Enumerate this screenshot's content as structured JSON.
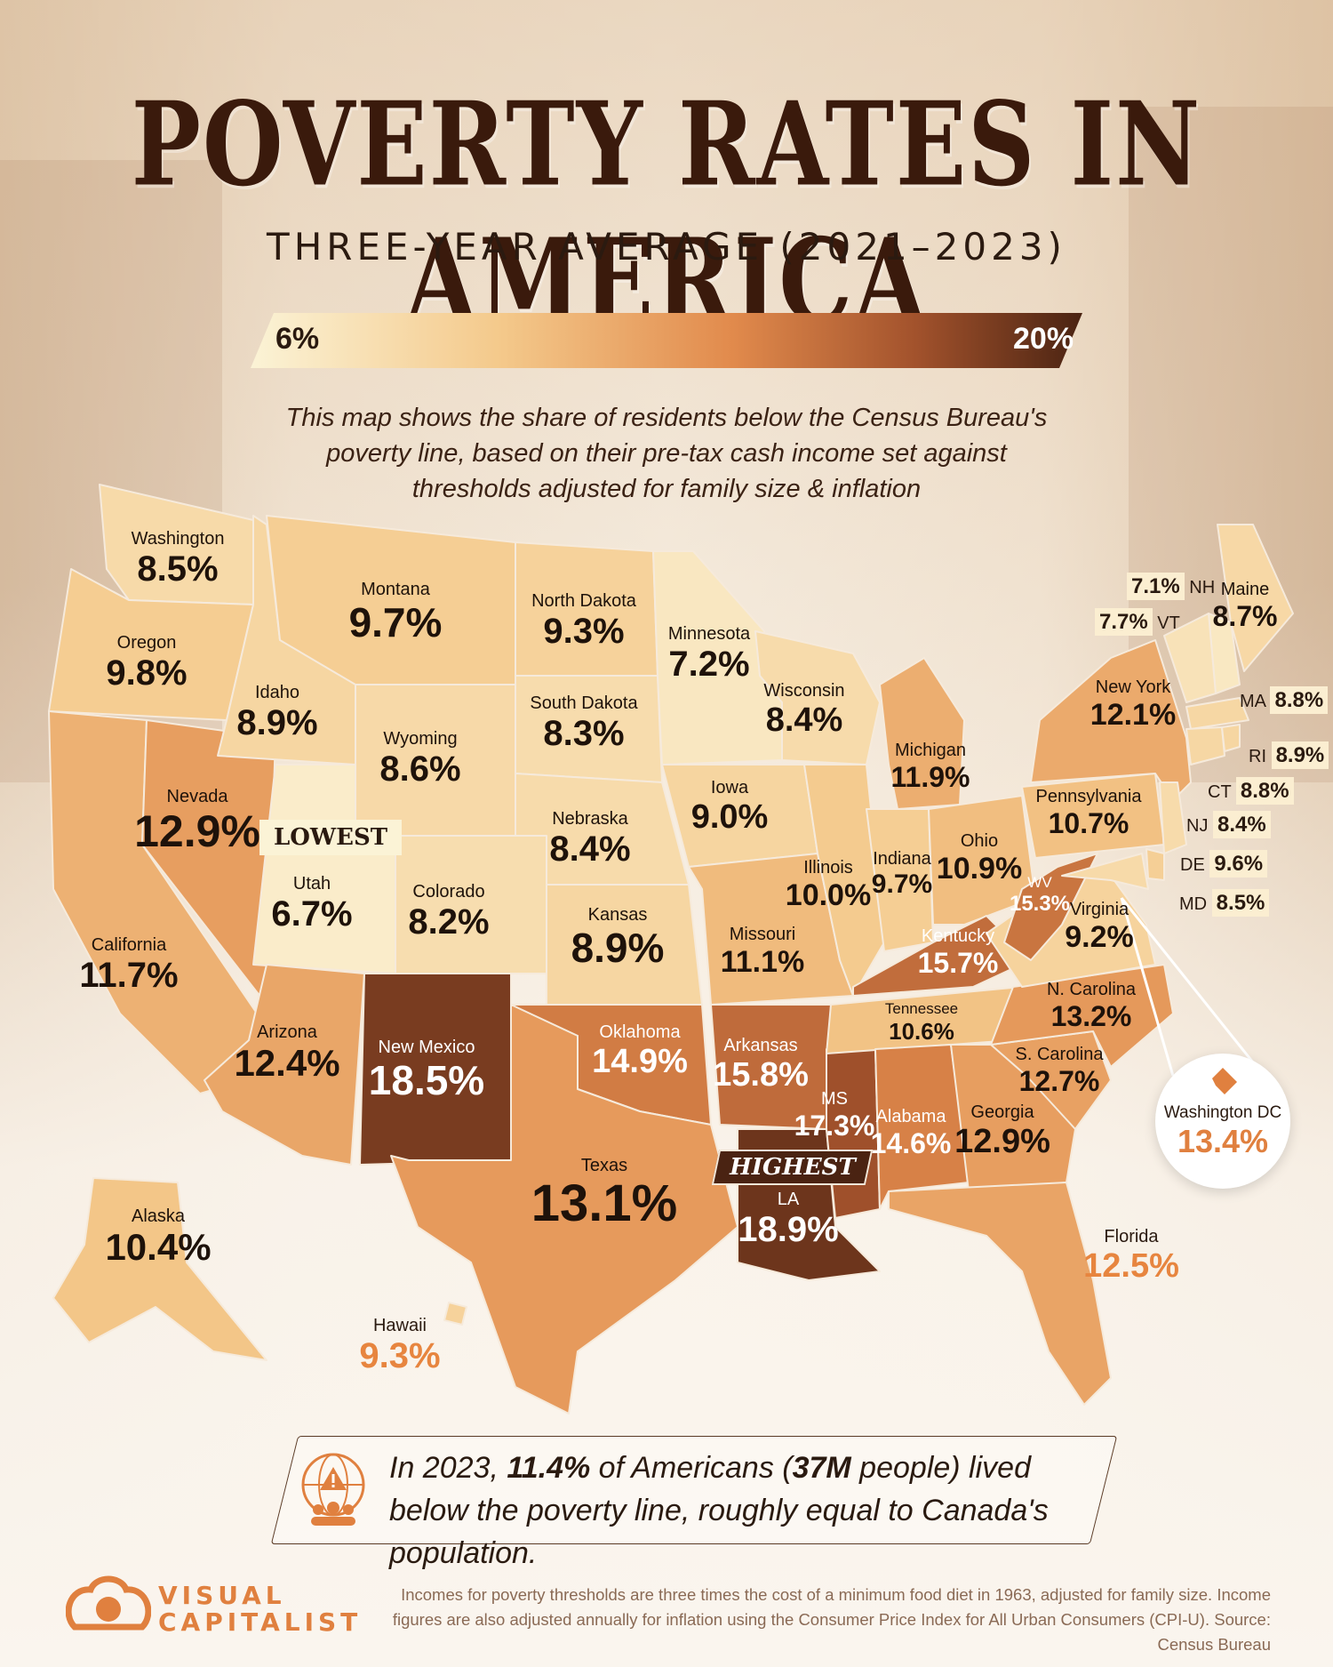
{
  "title": "POVERTY RATES IN AMERICA",
  "subtitle": "THREE-YEAR AVERAGE (2021–2023)",
  "legend": {
    "min_label": "6%",
    "max_label": "20%",
    "min": 6,
    "max": 20
  },
  "description": "This map shows the share of residents below the Census Bureau's poverty line, based on their pre-tax cash income set against thresholds adjusted for family size & inflation",
  "tags": {
    "lowest": "LOWEST",
    "highest": "HIGHEST"
  },
  "states": [
    {
      "name": "Washington",
      "value": "8.5%"
    },
    {
      "name": "Oregon",
      "value": "9.8%"
    },
    {
      "name": "California",
      "value": "11.7%"
    },
    {
      "name": "Nevada",
      "value": "12.9%"
    },
    {
      "name": "Idaho",
      "value": "8.9%"
    },
    {
      "name": "Montana",
      "value": "9.7%"
    },
    {
      "name": "Wyoming",
      "value": "8.6%"
    },
    {
      "name": "Utah",
      "value": "6.7%"
    },
    {
      "name": "Colorado",
      "value": "8.2%"
    },
    {
      "name": "Arizona",
      "value": "12.4%"
    },
    {
      "name": "New Mexico",
      "value": "18.5%"
    },
    {
      "name": "North Dakota",
      "value": "9.3%"
    },
    {
      "name": "South Dakota",
      "value": "8.3%"
    },
    {
      "name": "Nebraska",
      "value": "8.4%"
    },
    {
      "name": "Kansas",
      "value": "8.9%"
    },
    {
      "name": "Oklahoma",
      "value": "14.9%"
    },
    {
      "name": "Texas",
      "value": "13.1%"
    },
    {
      "name": "Minnesota",
      "value": "7.2%"
    },
    {
      "name": "Iowa",
      "value": "9.0%"
    },
    {
      "name": "Missouri",
      "value": "11.1%"
    },
    {
      "name": "Arkansas",
      "value": "15.8%"
    },
    {
      "name": "LA",
      "value": "18.9%"
    },
    {
      "name": "Wisconsin",
      "value": "8.4%"
    },
    {
      "name": "Illinois",
      "value": "10.0%"
    },
    {
      "name": "MS",
      "value": "17.3%"
    },
    {
      "name": "Michigan",
      "value": "11.9%"
    },
    {
      "name": "Indiana",
      "value": "9.7%"
    },
    {
      "name": "Ohio",
      "value": "10.9%"
    },
    {
      "name": "Kentucky",
      "value": "15.7%"
    },
    {
      "name": "Tennessee",
      "value": "10.6%"
    },
    {
      "name": "Alabama",
      "value": "14.6%"
    },
    {
      "name": "Georgia",
      "value": "12.9%"
    },
    {
      "name": "Florida",
      "value": "12.5%"
    },
    {
      "name": "S. Carolina",
      "value": "12.7%"
    },
    {
      "name": "N. Carolina",
      "value": "13.2%"
    },
    {
      "name": "Virginia",
      "value": "9.2%"
    },
    {
      "name": "WV",
      "value": "15.3%"
    },
    {
      "name": "Pennsylvania",
      "value": "10.7%"
    },
    {
      "name": "New York",
      "value": "12.1%"
    },
    {
      "name": "Maine",
      "value": "8.7%"
    },
    {
      "name": "Alaska",
      "value": "10.4%"
    },
    {
      "name": "Hawaii",
      "value": "9.3%"
    }
  ],
  "northeast": [
    {
      "abbr": "NH",
      "value": "7.1%"
    },
    {
      "abbr": "VT",
      "value": "7.7%"
    },
    {
      "abbr": "MA",
      "value": "8.8%"
    },
    {
      "abbr": "RI",
      "value": "8.9%"
    },
    {
      "abbr": "CT",
      "value": "8.8%"
    },
    {
      "abbr": "NJ",
      "value": "8.4%"
    },
    {
      "abbr": "DE",
      "value": "9.6%"
    },
    {
      "abbr": "MD",
      "value": "8.5%"
    }
  ],
  "dc": {
    "name": "Washington DC",
    "value": "13.4%"
  },
  "callout": {
    "pre": "In 2023, ",
    "rate": "11.4%",
    "mid": " of Americans (",
    "people": "37M",
    "post": " people) lived below the poverty line, roughly equal to Canada's population."
  },
  "brand": {
    "line1": "VISUAL",
    "line2": "CAPITALIST"
  },
  "footnote": "Incomes for poverty thresholds are three times the cost of a minimum food diet in 1963, adjusted for family size. Income figures are also adjusted annually for inflation using the Consumer Price Index for All Urban Consumers (CPI-U). Source: Census Bureau",
  "colors": {
    "low": "#fbf3d6",
    "mid": "#e18a4c",
    "high": "#4a2312",
    "accent": "#e0803f"
  }
}
